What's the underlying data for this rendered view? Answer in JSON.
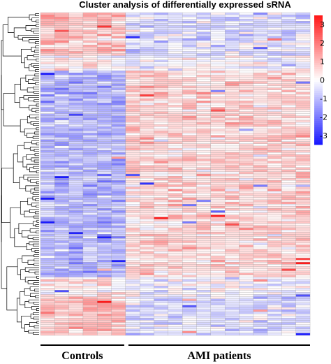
{
  "chart_data": {
    "type": "heatmap",
    "title": "Cluster analysis of differentially expressed sRNA",
    "columns": 19,
    "rows": 150,
    "color_scale": {
      "min": -3.5,
      "max": 3.5,
      "low_color": "#1a1aff",
      "mid_color": "#ffffff",
      "high_color": "#ff1a1a",
      "ticks": [
        "3",
        "2",
        "1",
        "0",
        "-1",
        "-2",
        "-3"
      ],
      "tick_values": [
        3,
        2,
        1,
        0,
        -1,
        -2,
        -3
      ]
    },
    "groups": [
      {
        "label": "Controls",
        "columns": 6
      },
      {
        "label": "AMI patients",
        "columns": 13
      }
    ],
    "row_dendrogram": true,
    "grid": true
  }
}
